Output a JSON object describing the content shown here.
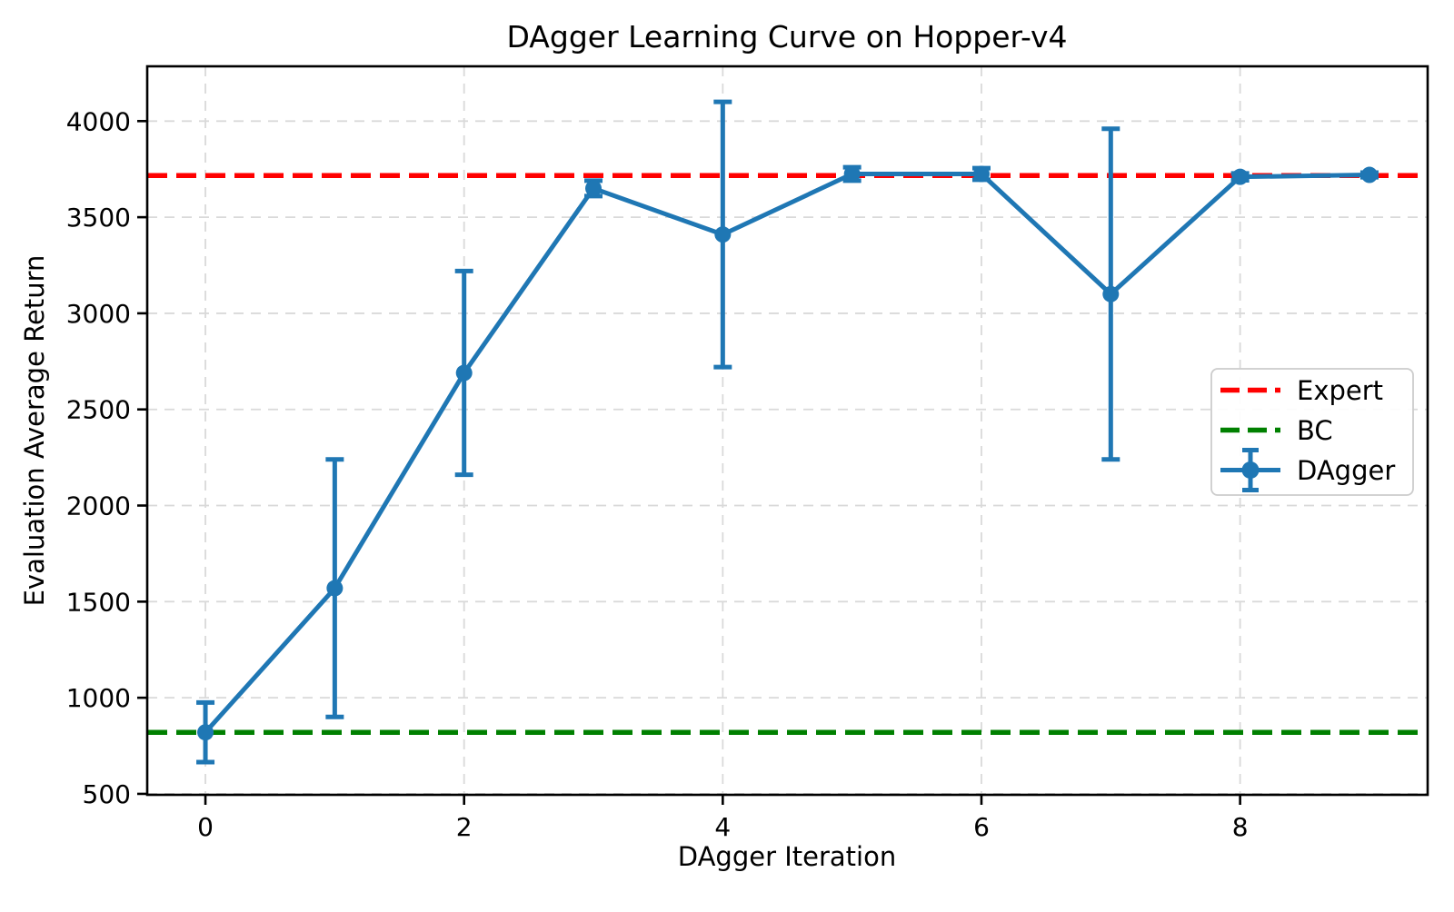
{
  "chart_data": {
    "type": "line",
    "title": "DAgger Learning Curve on Hopper-v4",
    "xlabel": "DAgger Iteration",
    "ylabel": "Evaluation Average Return",
    "x": [
      0,
      1,
      2,
      3,
      4,
      5,
      6,
      7,
      8,
      9
    ],
    "series": [
      {
        "name": "DAgger",
        "style": "errorbar-line",
        "color": "#1f77b4",
        "marker": "circle",
        "means": [
          820,
          1570,
          2690,
          3650,
          3410,
          3725,
          3725,
          3100,
          3710,
          3720
        ],
        "errors": [
          155,
          670,
          530,
          40,
          690,
          35,
          30,
          860,
          18,
          12
        ]
      }
    ],
    "hlines": [
      {
        "name": "Expert",
        "value": 3717,
        "color": "#ff0000",
        "style": "dashed"
      },
      {
        "name": "BC",
        "value": 820,
        "color": "#008000",
        "style": "dashed"
      }
    ],
    "legend": {
      "position": "center right",
      "entries": [
        {
          "label": "Expert",
          "color": "#ff0000",
          "sample": "dashed"
        },
        {
          "label": "BC",
          "color": "#008000",
          "sample": "dashed"
        },
        {
          "label": "DAgger",
          "color": "#1f77b4",
          "sample": "errorbar"
        }
      ]
    },
    "xticks": [
      0,
      2,
      4,
      6,
      8
    ],
    "yticks": [
      500,
      1000,
      1500,
      2000,
      2500,
      3000,
      3500,
      4000
    ],
    "xlim": [
      -0.45,
      9.45
    ],
    "ylim": [
      495,
      4285
    ],
    "grid": true,
    "grid_color": "#d9d9d9",
    "background_color": "#ffffff",
    "axis_color": "#000000"
  }
}
